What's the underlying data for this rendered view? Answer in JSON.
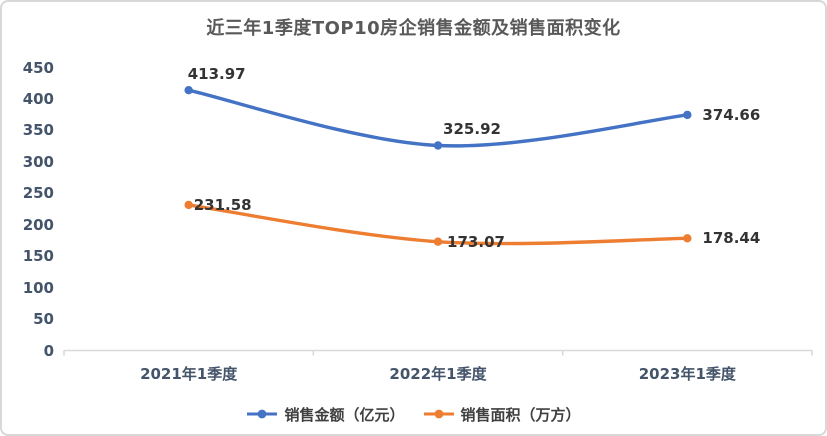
{
  "title": "近三年1季度TOP10房企销售金额及销售面积变化",
  "chart_data": {
    "type": "line",
    "title": "近三年1季度TOP10房企销售金额及销售面积变化",
    "categories": [
      "2021年1季度",
      "2022年1季度",
      "2023年1季度"
    ],
    "series": [
      {
        "name": "销售金额（亿元）",
        "color": "#4472C4",
        "values": [
          413.97,
          325.92,
          374.66
        ]
      },
      {
        "name": "销售面积（万方）",
        "color": "#ED7D31",
        "values": [
          231.58,
          173.07,
          178.44
        ]
      }
    ],
    "xlabel": "",
    "ylabel": "",
    "ylim": [
      0,
      450
    ],
    "ytick_step": 50,
    "yticks": [
      0,
      50,
      100,
      150,
      200,
      250,
      300,
      350,
      400,
      450
    ],
    "grid": false,
    "smooth": true,
    "markers": true,
    "data_labels": true,
    "legend_position": "bottom",
    "axis_color": "#d9d9d9",
    "title_color": "#595959",
    "tick_label_color": "#44546A",
    "data_label_color": "#333333"
  }
}
